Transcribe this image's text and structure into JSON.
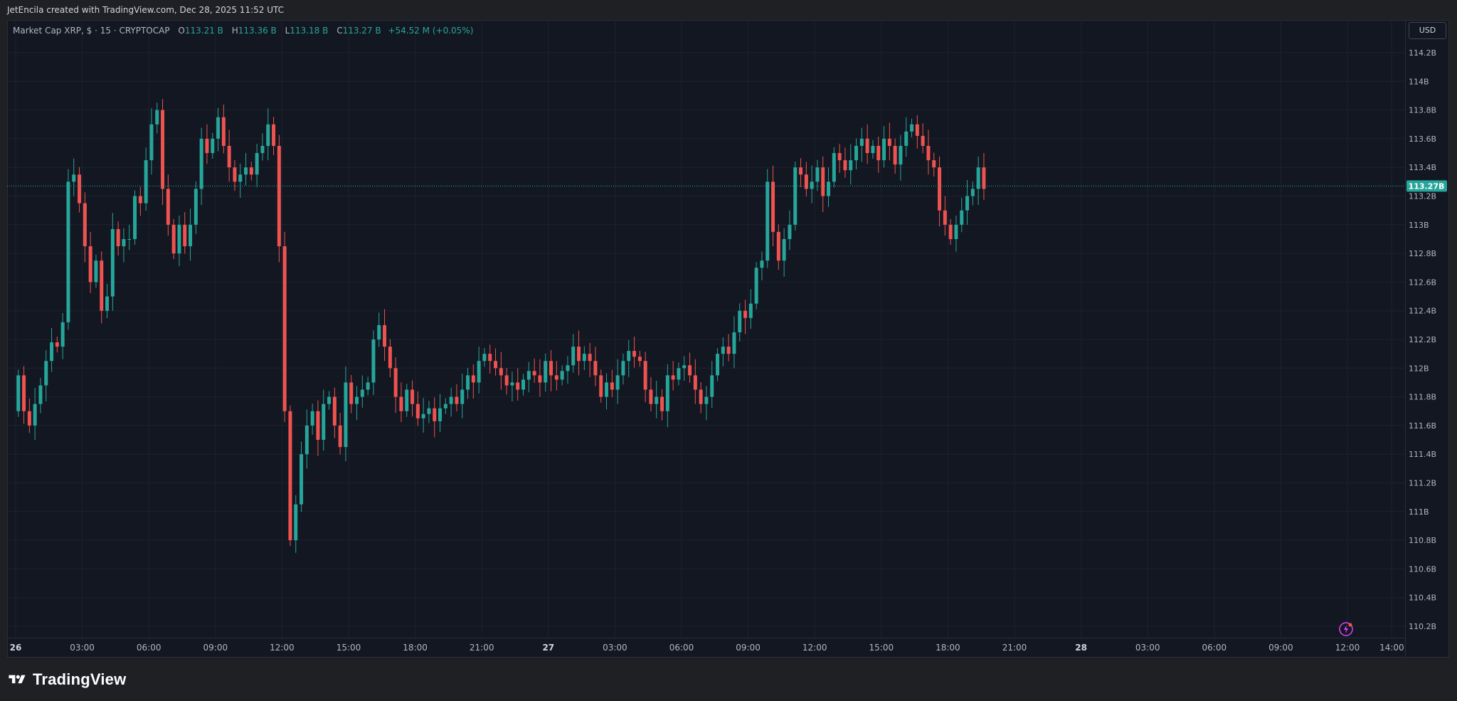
{
  "header": {
    "attribution": "JetEncila created with TradingView.com, Dec 28, 2025 11:52 UTC"
  },
  "legend": {
    "symbol": "Market Cap XRP, $ · 15 · CRYPTOCAP",
    "o_label": "O",
    "o_value": "113.21 B",
    "h_label": "H",
    "h_value": "113.36 B",
    "l_label": "L",
    "l_value": "113.18 B",
    "c_label": "C",
    "c_value": "113.27 B",
    "change": "+54.52 M (+0.05%)"
  },
  "currency_button": "USD",
  "footer": {
    "brand": "TradingView"
  },
  "colors": {
    "up": "#26a69a",
    "down": "#ef5350",
    "background": "#131722",
    "grid": "#1e222d",
    "text": "#b2b5be"
  },
  "icons": {
    "logo": "tradingview-logo-icon",
    "alert": "lightning-bolt-icon"
  },
  "chart_data": {
    "type": "candlestick",
    "interval": "15",
    "y_unit": "B USD",
    "ylim": [
      110.05,
      114.35
    ],
    "y_ticks": [
      110.2,
      110.4,
      110.6,
      110.8,
      111,
      111.2,
      111.4,
      111.6,
      111.8,
      112,
      112.2,
      112.4,
      112.6,
      112.8,
      113,
      113.2,
      113.4,
      113.6,
      113.8,
      114,
      114.2
    ],
    "y_tick_labels": [
      "110.2B",
      "110.4B",
      "110.6B",
      "110.8B",
      "111B",
      "111.2B",
      "111.4B",
      "111.6B",
      "111.8B",
      "112B",
      "112.2B",
      "112.4B",
      "112.6B",
      "112.8B",
      "113B",
      "113.2B",
      "113.4B",
      "113.6B",
      "113.8B",
      "114B",
      "114.2B"
    ],
    "x_start": "Dec 26 00:00",
    "x_ticks": [
      "26",
      "03:00",
      "06:00",
      "09:00",
      "12:00",
      "15:00",
      "18:00",
      "21:00",
      "27",
      "03:00",
      "06:00",
      "09:00",
      "12:00",
      "15:00",
      "18:00",
      "21:00",
      "28",
      "03:00",
      "06:00",
      "09:00",
      "12:00",
      "14:00"
    ],
    "x_tick_hours": [
      0,
      3,
      6,
      9,
      12,
      15,
      18,
      21,
      24,
      27,
      30,
      33,
      36,
      39,
      42,
      45,
      48,
      51,
      54,
      57,
      60,
      62
    ],
    "bold_ticks": [
      "26",
      "27",
      "28"
    ],
    "last_price": 113.27,
    "last_price_label": "113.27B",
    "closes": [
      111.95,
      111.7,
      111.6,
      111.75,
      111.88,
      112.05,
      112.18,
      112.15,
      112.32,
      113.3,
      113.35,
      113.15,
      112.85,
      112.6,
      112.75,
      112.4,
      112.5,
      112.97,
      112.85,
      112.9,
      112.9,
      113.2,
      113.15,
      113.45,
      113.7,
      113.8,
      113.25,
      113.0,
      112.8,
      113.0,
      112.85,
      113.0,
      113.25,
      113.6,
      113.5,
      113.6,
      113.75,
      113.55,
      113.4,
      113.3,
      113.35,
      113.4,
      113.35,
      113.5,
      113.55,
      113.7,
      113.55,
      112.85,
      111.7,
      110.8,
      111.05,
      111.4,
      111.6,
      111.7,
      111.5,
      111.75,
      111.8,
      111.6,
      111.45,
      111.9,
      111.75,
      111.8,
      111.85,
      111.9,
      112.2,
      112.3,
      112.15,
      112.0,
      111.8,
      111.7,
      111.85,
      111.75,
      111.65,
      111.68,
      111.72,
      111.63,
      111.72,
      111.75,
      111.8,
      111.75,
      111.85,
      111.95,
      111.9,
      112.05,
      112.1,
      112.05,
      112.0,
      111.95,
      111.88,
      111.9,
      111.85,
      111.92,
      111.98,
      111.95,
      111.9,
      112.05,
      111.95,
      111.92,
      111.98,
      112.02,
      112.15,
      112.05,
      112.1,
      112.05,
      111.95,
      111.8,
      111.9,
      111.85,
      111.95,
      112.05,
      112.12,
      112.08,
      112.05,
      111.85,
      111.75,
      111.8,
      111.7,
      111.95,
      111.92,
      112.0,
      112.02,
      111.95,
      111.85,
      111.75,
      111.8,
      111.95,
      112.1,
      112.15,
      112.1,
      112.25,
      112.4,
      112.35,
      112.45,
      112.7,
      112.75,
      113.3,
      112.95,
      112.75,
      112.9,
      113.0,
      113.4,
      113.35,
      113.25,
      113.3,
      113.4,
      113.2,
      113.3,
      113.5,
      113.45,
      113.38,
      113.45,
      113.55,
      113.6,
      113.5,
      113.55,
      113.45,
      113.6,
      113.55,
      113.42,
      113.55,
      113.65,
      113.7,
      113.62,
      113.55,
      113.45,
      113.4,
      113.1,
      113.0,
      112.9,
      113.0,
      113.1,
      113.2,
      113.25,
      113.4,
      113.25
    ]
  }
}
